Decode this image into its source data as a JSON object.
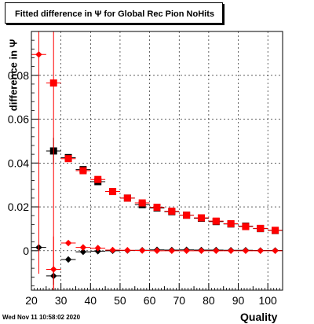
{
  "header": {
    "title": "Fitted difference in  Ψ  for Global Rec Pion NoHits"
  },
  "footer": {
    "timestamp": "Wed Nov 11 10:58:02 2020"
  },
  "chart_data": {
    "type": "scatter",
    "title": "Fitted difference in  Ψ  for Global Rec Pion NoHits",
    "xlabel": "Quality",
    "ylabel": "difference in  Ψ",
    "xlim": [
      20,
      105
    ],
    "ylim": [
      -0.018,
      0.1
    ],
    "grid": true,
    "x_ticks": [
      20,
      30,
      40,
      50,
      60,
      70,
      80,
      90,
      100
    ],
    "x_tick_labels": [
      "20",
      "30",
      "40",
      "50",
      "60",
      "70",
      "80",
      "90",
      "100"
    ],
    "y_ticks": [
      0,
      0.02,
      0.04,
      0.06,
      0.08
    ],
    "y_tick_labels": [
      "0",
      "0.02",
      "0.04",
      "0.06",
      "0.08"
    ],
    "series": [
      {
        "marker": "square",
        "color": "#000000",
        "x": [
          27.5,
          32.5,
          37.5,
          42.5,
          47.5,
          52.5,
          57.5,
          62.5,
          67.5,
          72.5,
          77.5,
          82.5,
          87.5,
          92.5,
          97.5,
          102.5
        ],
        "y": [
          0.0455,
          0.0425,
          0.037,
          0.0315,
          0.027,
          0.024,
          0.021,
          0.0195,
          0.0178,
          0.0162,
          0.0148,
          0.0133,
          0.0122,
          0.0112,
          0.0101,
          0.0092
        ],
        "yerr": [
          0.006,
          0,
          0,
          0,
          0,
          0,
          0,
          0,
          0,
          0,
          0,
          0,
          0,
          0,
          0,
          0
        ]
      },
      {
        "marker": "square",
        "color": "#ff0000",
        "x": [
          27.5,
          32.5,
          37.5,
          42.5,
          47.5,
          52.5,
          57.5,
          62.5,
          67.5,
          72.5,
          77.5,
          82.5,
          87.5,
          92.5,
          97.5,
          102.5
        ],
        "y": [
          0.0765,
          0.042,
          0.0365,
          0.0325,
          0.027,
          0.024,
          0.0218,
          0.0198,
          0.018,
          0.0162,
          0.015,
          0.0135,
          0.0123,
          0.011,
          0.0102,
          0.0093
        ],
        "yerr": [
          0.1,
          0,
          0,
          0,
          0,
          0,
          0,
          0,
          0,
          0,
          0,
          0,
          0,
          0,
          0,
          0
        ]
      },
      {
        "marker": "diamond",
        "color": "#000000",
        "x": [
          22.5,
          27.5,
          32.5,
          37.5,
          42.5,
          47.5,
          52.5,
          57.5,
          62.5,
          67.5,
          72.5,
          77.5,
          82.5,
          87.5,
          92.5,
          97.5,
          102.5
        ],
        "y": [
          0.0015,
          -0.0115,
          -0.004,
          -0.0005,
          -0.0002,
          0.0,
          0.0001,
          0.0002,
          0.0004,
          0.0003,
          0.0004,
          0.0003,
          0.0003,
          0.0002,
          0.0002,
          0.0001,
          0.0001
        ],
        "yerr": [
          0,
          0.004,
          0,
          0,
          0,
          0,
          0,
          0,
          0,
          0,
          0,
          0,
          0,
          0,
          0,
          0,
          0
        ]
      },
      {
        "marker": "diamond",
        "color": "#ff0000",
        "x": [
          22.5,
          27.5,
          32.5,
          37.5,
          42.5,
          47.5,
          52.5,
          57.5,
          62.5,
          67.5,
          72.5,
          77.5,
          82.5,
          87.5,
          92.5,
          97.5,
          102.5
        ],
        "y": [
          0.0895,
          -0.0085,
          0.0035,
          0.0015,
          0.0012,
          0.0003,
          0.0002,
          0.0001,
          0.0,
          0.0,
          0.0,
          0.0,
          0.0,
          0.0,
          0.0,
          0.0,
          0.0
        ],
        "yerr": [
          0.1,
          0.015,
          0,
          0,
          0,
          0,
          0,
          0,
          0,
          0,
          0,
          0,
          0,
          0,
          0,
          0,
          0
        ]
      }
    ]
  }
}
